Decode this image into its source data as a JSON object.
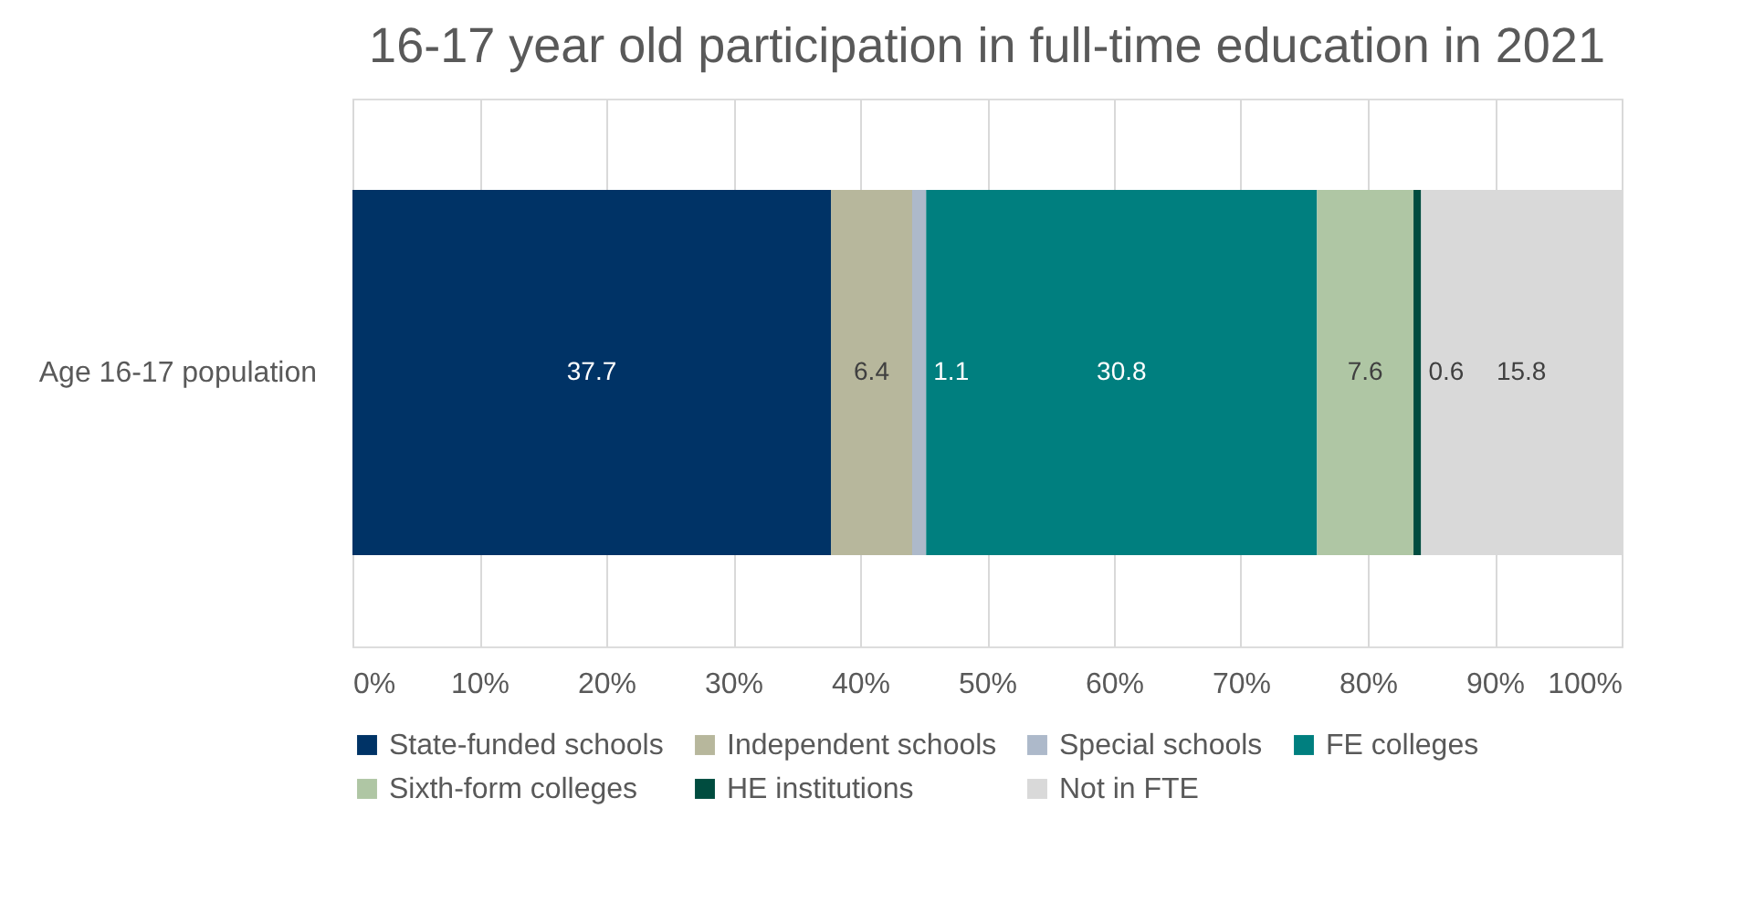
{
  "chart_data": {
    "type": "bar",
    "orientation": "horizontal",
    "stacked": true,
    "title": "16-17 year old participation in full-time education in 2021",
    "categories": [
      "Age 16-17 population"
    ],
    "series": [
      {
        "name": "State-funded schools",
        "color": "#003366",
        "values": [
          37.7
        ]
      },
      {
        "name": "Independent schools",
        "color": "#b7b79c",
        "values": [
          6.4
        ]
      },
      {
        "name": "Special schools",
        "color": "#adb9ca",
        "values": [
          1.1
        ]
      },
      {
        "name": "FE colleges",
        "color": "#007f7f",
        "values": [
          30.8
        ]
      },
      {
        "name": "Sixth-form colleges",
        "color": "#afc6a4",
        "values": [
          7.6
        ]
      },
      {
        "name": "HE institutions",
        "color": "#004c3f",
        "values": [
          0.6
        ]
      },
      {
        "name": "Not in FTE",
        "color": "#d9d9d9",
        "values": [
          15.8
        ]
      }
    ],
    "xlim": [
      0,
      100
    ],
    "xticks": [
      {
        "value": 0,
        "label": "0%"
      },
      {
        "value": 10,
        "label": "10%"
      },
      {
        "value": 20,
        "label": "20%"
      },
      {
        "value": 30,
        "label": "30%"
      },
      {
        "value": 40,
        "label": "40%"
      },
      {
        "value": 50,
        "label": "50%"
      },
      {
        "value": 60,
        "label": "60%"
      },
      {
        "value": 70,
        "label": "70%"
      },
      {
        "value": 80,
        "label": "80%"
      },
      {
        "value": 90,
        "label": "90%"
      },
      {
        "value": 100,
        "label": "100%"
      }
    ],
    "grid": "x",
    "legend": "bottom",
    "data_labels": true
  }
}
